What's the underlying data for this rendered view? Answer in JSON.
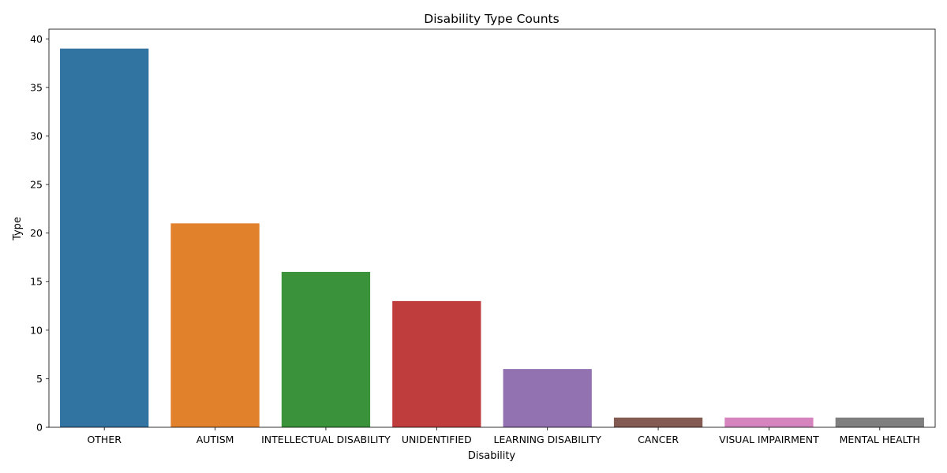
{
  "chart_data": {
    "type": "bar",
    "title": "Disability Type Counts",
    "xlabel": "Disability",
    "ylabel": "Type",
    "categories": [
      "OTHER",
      "AUTISM",
      "INTELLECTUAL DISABILITY",
      "UNIDENTIFIED",
      "LEARNING DISABILITY",
      "CANCER",
      "VISUAL IMPAIRMENT",
      "MENTAL HEALTH"
    ],
    "values": [
      39,
      21,
      16,
      13,
      6,
      1,
      1,
      1
    ],
    "colors": [
      "#3274a1",
      "#e1812c",
      "#3a923a",
      "#c03d3e",
      "#9372b2",
      "#845b53",
      "#d684bd",
      "#7f7f7f"
    ],
    "ylim": [
      0,
      41
    ],
    "yticks": [
      0,
      5,
      10,
      15,
      20,
      25,
      30,
      35,
      40
    ],
    "grid": false,
    "legend": "none"
  }
}
